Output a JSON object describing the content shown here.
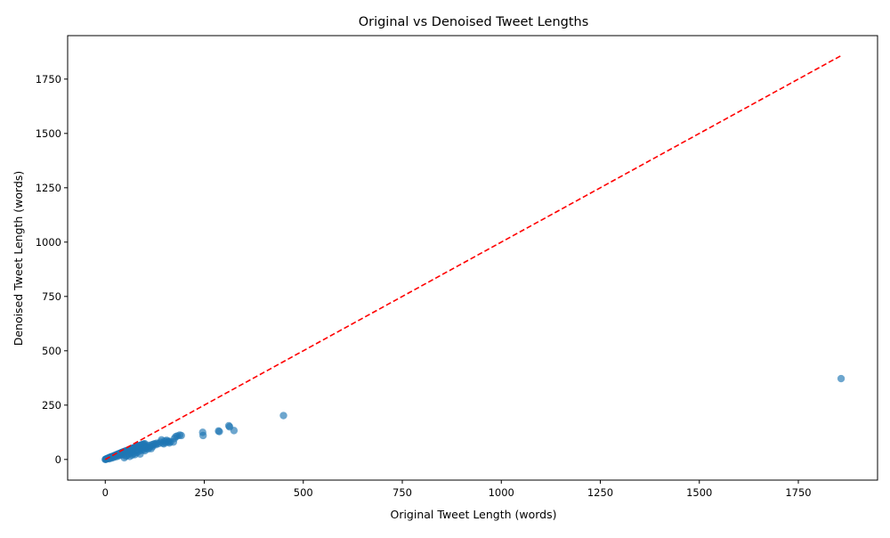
{
  "chart_data": {
    "type": "scatter",
    "title": "Original vs Denoised Tweet Lengths",
    "xlabel": "Original Tweet Length (words)",
    "ylabel": "Denoised Tweet Length (words)",
    "xlim": [
      -95,
      1950
    ],
    "ylim": [
      -95,
      1950
    ],
    "xticks": [
      0,
      250,
      500,
      750,
      1000,
      1250,
      1500,
      1750
    ],
    "yticks": [
      0,
      250,
      500,
      750,
      1000,
      1250,
      1500,
      1750
    ],
    "grid": false,
    "point_color": "#1f77b4",
    "point_alpha": 0.65,
    "reference_line": {
      "style": "dashed",
      "color": "#ff0000",
      "x": [
        0,
        1858
      ],
      "y": [
        0,
        1858
      ]
    },
    "series": [
      {
        "points": [
          [
            0,
            0
          ],
          [
            1,
            1
          ],
          [
            2,
            1
          ],
          [
            3,
            2
          ],
          [
            4,
            3
          ],
          [
            5,
            4
          ],
          [
            6,
            4
          ],
          [
            7,
            5
          ],
          [
            8,
            6
          ],
          [
            9,
            7
          ],
          [
            10,
            8
          ],
          [
            11,
            8
          ],
          [
            12,
            9
          ],
          [
            13,
            10
          ],
          [
            14,
            11
          ],
          [
            15,
            11
          ],
          [
            16,
            12
          ],
          [
            17,
            13
          ],
          [
            18,
            13
          ],
          [
            19,
            14
          ],
          [
            20,
            15
          ],
          [
            21,
            16
          ],
          [
            22,
            16
          ],
          [
            23,
            17
          ],
          [
            24,
            18
          ],
          [
            25,
            19
          ],
          [
            26,
            19
          ],
          [
            27,
            20
          ],
          [
            28,
            21
          ],
          [
            29,
            22
          ],
          [
            30,
            22
          ],
          [
            31,
            23
          ],
          [
            32,
            24
          ],
          [
            33,
            25
          ],
          [
            34,
            25
          ],
          [
            35,
            26
          ],
          [
            36,
            27
          ],
          [
            37,
            28
          ],
          [
            38,
            28
          ],
          [
            39,
            29
          ],
          [
            40,
            30
          ],
          [
            41,
            31
          ],
          [
            42,
            32
          ],
          [
            43,
            32
          ],
          [
            44,
            33
          ],
          [
            45,
            34
          ],
          [
            46,
            35
          ],
          [
            47,
            35
          ],
          [
            48,
            36
          ],
          [
            49,
            37
          ],
          [
            50,
            38
          ],
          [
            52,
            39
          ],
          [
            54,
            40
          ],
          [
            56,
            42
          ],
          [
            58,
            43
          ],
          [
            60,
            45
          ],
          [
            62,
            46
          ],
          [
            64,
            48
          ],
          [
            66,
            49
          ],
          [
            68,
            51
          ],
          [
            70,
            52
          ],
          [
            72,
            53
          ],
          [
            74,
            55
          ],
          [
            76,
            56
          ],
          [
            78,
            58
          ],
          [
            80,
            59
          ],
          [
            82,
            60
          ],
          [
            84,
            62
          ],
          [
            86,
            63
          ],
          [
            88,
            64
          ],
          [
            90,
            66
          ],
          [
            92,
            67
          ],
          [
            94,
            68
          ],
          [
            96,
            70
          ],
          [
            98,
            71
          ],
          [
            100,
            72
          ],
          [
            10,
            3
          ],
          [
            15,
            6
          ],
          [
            20,
            9
          ],
          [
            25,
            12
          ],
          [
            30,
            14
          ],
          [
            35,
            18
          ],
          [
            40,
            20
          ],
          [
            45,
            22
          ],
          [
            48,
            8
          ],
          [
            52,
            15
          ],
          [
            55,
            18
          ],
          [
            60,
            25
          ],
          [
            62,
            14
          ],
          [
            65,
            30
          ],
          [
            68,
            20
          ],
          [
            70,
            35
          ],
          [
            72,
            28
          ],
          [
            75,
            22
          ],
          [
            78,
            40
          ],
          [
            80,
            32
          ],
          [
            82,
            45
          ],
          [
            85,
            38
          ],
          [
            88,
            25
          ],
          [
            90,
            50
          ],
          [
            92,
            42
          ],
          [
            95,
            55
          ],
          [
            98,
            46
          ],
          [
            100,
            40
          ],
          [
            102,
            60
          ],
          [
            104,
            52
          ],
          [
            106,
            58
          ],
          [
            108,
            48
          ],
          [
            110,
            65
          ],
          [
            112,
            55
          ],
          [
            114,
            62
          ],
          [
            116,
            50
          ],
          [
            118,
            68
          ],
          [
            120,
            60
          ],
          [
            122,
            70
          ],
          [
            125,
            72
          ],
          [
            128,
            68
          ],
          [
            130,
            75
          ],
          [
            135,
            73
          ],
          [
            140,
            80
          ],
          [
            142,
            90
          ],
          [
            145,
            75
          ],
          [
            148,
            72
          ],
          [
            150,
            85
          ],
          [
            152,
            78
          ],
          [
            155,
            88
          ],
          [
            158,
            80
          ],
          [
            160,
            84
          ],
          [
            162,
            76
          ],
          [
            165,
            82
          ],
          [
            172,
            80
          ],
          [
            175,
            97
          ],
          [
            178,
            105
          ],
          [
            182,
            108
          ],
          [
            188,
            112
          ],
          [
            192,
            110
          ],
          [
            246,
            125
          ],
          [
            247,
            110
          ],
          [
            286,
            131
          ],
          [
            288,
            128
          ],
          [
            312,
            155
          ],
          [
            314,
            150
          ],
          [
            325,
            133
          ],
          [
            450,
            202
          ],
          [
            1858,
            372
          ]
        ]
      }
    ]
  }
}
